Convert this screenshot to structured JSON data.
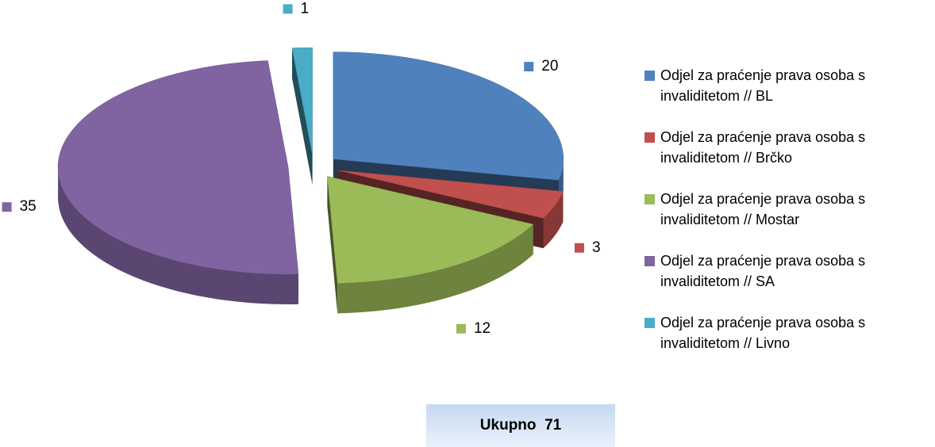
{
  "chart_data": {
    "type": "pie3d",
    "categories": [
      "Odjel za praćenje prava osoba s invaliditetom // BL",
      "Odjel za praćenje prava osoba s invaliditetom // Brčko",
      "Odjel za praćenje prava osoba s invaliditetom // Mostar",
      "Odjel za praćenje prava osoba s invaliditetom // SA",
      "Odjel za praćenje prava osoba s invaliditetom // Livno"
    ],
    "values": [
      20,
      3,
      12,
      35,
      1
    ],
    "colors": [
      "#4f81bd",
      "#c0504d",
      "#9bbb59",
      "#8064a2",
      "#4bacc6"
    ],
    "legend": "right",
    "total_label": "Ukupno  71"
  }
}
